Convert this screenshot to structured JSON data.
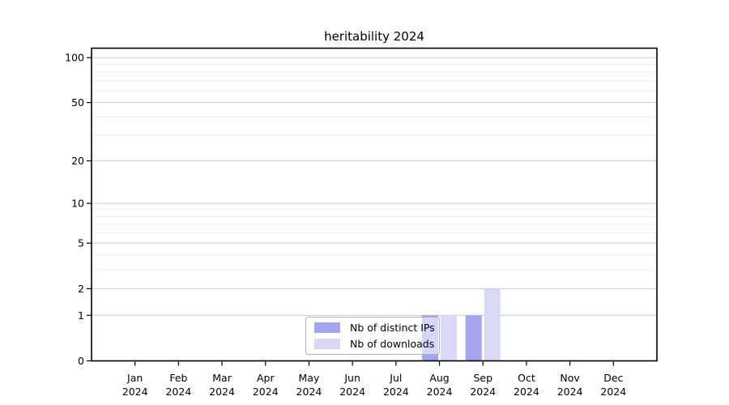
{
  "title": "heritability 2024",
  "legend": {
    "items": [
      {
        "label": "Nb of distinct IPs",
        "color": "#a5a5ef"
      },
      {
        "label": "Nb of downloads",
        "color": "#d9d9f7"
      }
    ]
  },
  "chart_data": {
    "type": "bar",
    "title": "heritability 2024",
    "categories": [
      "Jan",
      "Feb",
      "Mar",
      "Apr",
      "May",
      "Jun",
      "Jul",
      "Aug",
      "Sep",
      "Oct",
      "Nov",
      "Dec"
    ],
    "year_label": "2024",
    "series": [
      {
        "name": "Nb of distinct IPs",
        "color": "#a5a5ef",
        "values": [
          0,
          0,
          0,
          0,
          0,
          0,
          0,
          1,
          1,
          0,
          0,
          0
        ]
      },
      {
        "name": "Nb of downloads",
        "color": "#d9d9f7",
        "values": [
          0,
          0,
          0,
          0,
          0,
          0,
          0,
          1,
          2,
          0,
          0,
          0
        ]
      }
    ],
    "xlabel": "",
    "ylabel": "",
    "yscale": "log10(1+y)",
    "ylim": [
      0,
      116
    ],
    "y_ticks": [
      0,
      1,
      2,
      5,
      10,
      20,
      50,
      100
    ],
    "y_minor_ticks": [
      3,
      4,
      6,
      7,
      8,
      9,
      30,
      40,
      60,
      70,
      80,
      90
    ],
    "grid": true,
    "legend_position": "bottom-center",
    "colors": {
      "major_grid": "#cacaca",
      "minor_grid": "#ededed",
      "axis": "#000000",
      "tick_label": "#000000",
      "background": "#ffffff"
    }
  }
}
